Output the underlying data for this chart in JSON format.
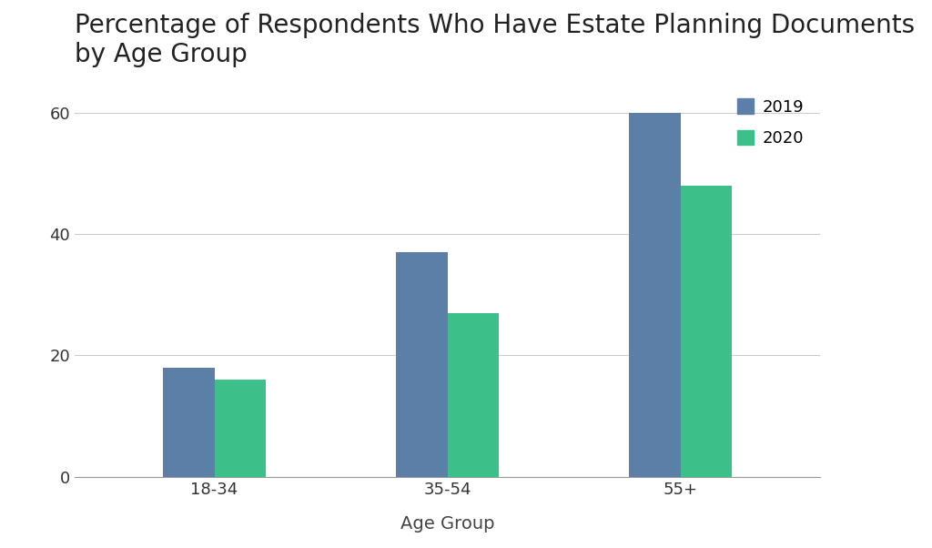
{
  "title": "Percentage of Respondents Who Have Estate Planning Documents\nby Age Group",
  "xlabel": "Age Group",
  "ylabel": "",
  "categories": [
    "18-34",
    "35-54",
    "55+"
  ],
  "series": {
    "2019": [
      18,
      37,
      60
    ],
    "2020": [
      16,
      27,
      48
    ]
  },
  "bar_colors": {
    "2019": "#5b7fa6",
    "2020": "#3dbf8a"
  },
  "ylim": [
    0,
    65
  ],
  "yticks": [
    0,
    20,
    40,
    60
  ],
  "background_color": "#ffffff",
  "grid_color": "#cccccc",
  "title_fontsize": 20,
  "axis_label_fontsize": 14,
  "tick_fontsize": 13,
  "legend_fontsize": 13,
  "bar_width": 0.22,
  "legend_labels": [
    "2019",
    "2020"
  ]
}
